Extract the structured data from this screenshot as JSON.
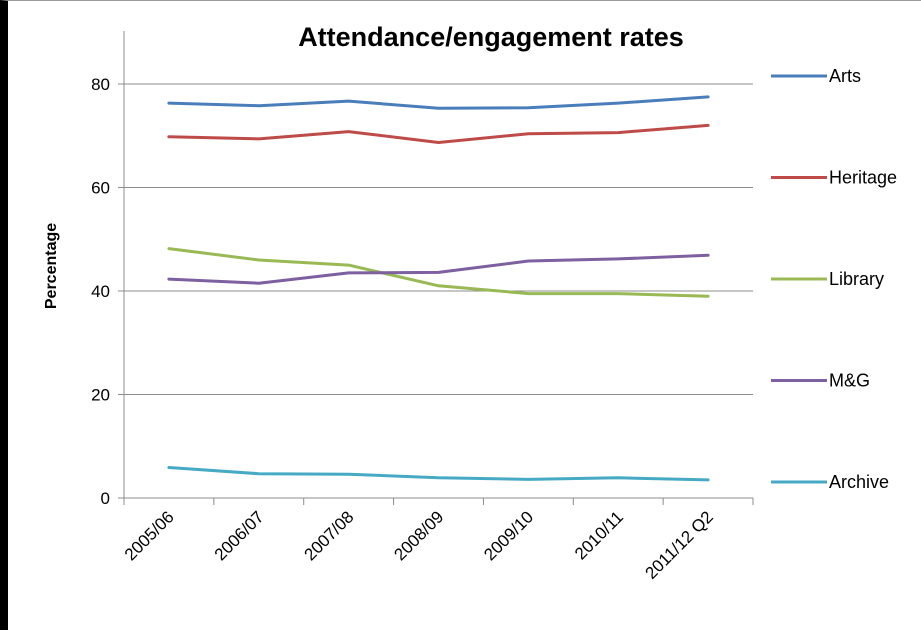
{
  "chart_data": {
    "type": "line",
    "title": "Attendance/engagement rates",
    "xlabel": "",
    "ylabel": "Percentage",
    "categories": [
      "2005/06",
      "2006/07",
      "2007/08",
      "2008/09",
      "2009/10",
      "2010/11",
      "2011/12 Q2"
    ],
    "yticks": [
      0,
      20,
      40,
      60,
      80
    ],
    "ylim": [
      0,
      90
    ],
    "grid": "horizontal",
    "legend_position": "right",
    "series": [
      {
        "name": "Arts",
        "color": "#4a7ebb",
        "values": [
          76.3,
          75.8,
          76.7,
          75.3,
          75.4,
          76.3,
          77.5
        ]
      },
      {
        "name": "Heritage",
        "color": "#be4b48",
        "values": [
          69.8,
          69.4,
          70.8,
          68.7,
          70.4,
          70.6,
          72.0
        ]
      },
      {
        "name": "Library",
        "color": "#98b954",
        "values": [
          48.2,
          46.0,
          45.0,
          41.0,
          39.5,
          39.5,
          39.0
        ]
      },
      {
        "name": "M&G",
        "color": "#7d60a0",
        "values": [
          42.3,
          41.5,
          43.5,
          43.6,
          45.8,
          46.2,
          46.9
        ]
      },
      {
        "name": "Archive",
        "color": "#46aac5",
        "values": [
          5.9,
          4.7,
          4.6,
          3.9,
          3.6,
          3.9,
          3.5
        ]
      }
    ]
  }
}
